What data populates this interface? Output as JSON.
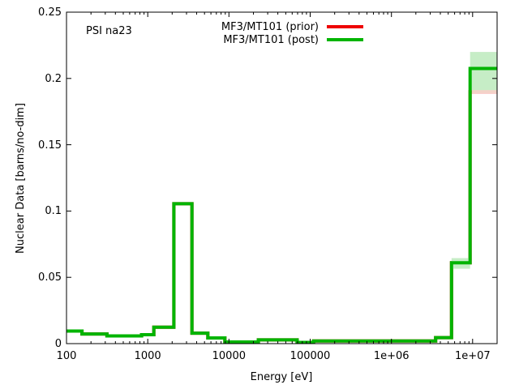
{
  "chart_data": {
    "type": "line",
    "subtype": "step-histogram",
    "annotation": "PSI na23",
    "xlabel": "Energy [eV]",
    "ylabel": "Nuclear Data [barns/no-dim]",
    "x_scale": "log10",
    "grid": false,
    "legend_position": "top-center-inside",
    "xlim": [
      100,
      20000000
    ],
    "ylim": [
      0,
      0.25
    ],
    "x_tick_values": [
      100,
      1000,
      10000,
      100000,
      1000000,
      10000000
    ],
    "x_tick_labels": [
      "100",
      "1000",
      "10000",
      "100000",
      "1e+06",
      "1e+07"
    ],
    "y_tick_values": [
      0,
      0.05,
      0.1,
      0.15,
      0.2,
      0.25
    ],
    "y_tick_labels": [
      "0",
      "0.05",
      "0.1",
      "0.15",
      "0.2",
      "0.25"
    ],
    "bin_edges_eV": [
      100,
      155,
      315,
      840,
      1190,
      2100,
      3500,
      5500,
      8900,
      23000,
      69000,
      110000,
      3500000,
      5500000,
      9300000,
      20000000
    ],
    "series": [
      {
        "name": "MF3/MT101 (prior)",
        "color": "#ee0000",
        "values": [
          0.0095,
          0.0073,
          0.0058,
          0.0067,
          0.0124,
          0.1055,
          0.0079,
          0.0043,
          0.0012,
          0.0028,
          0.0009,
          0.002,
          0.0045,
          0.061,
          0.19
        ]
      },
      {
        "name": "MF3/MT101 (post)",
        "color": "#00b400",
        "values": [
          0.0095,
          0.0073,
          0.0058,
          0.0067,
          0.0124,
          0.1055,
          0.0079,
          0.0043,
          0.0012,
          0.0028,
          0.0009,
          0.002,
          0.0045,
          0.061,
          0.2075
        ]
      }
    ],
    "uncertainty_bands": [
      {
        "x1": 5500000,
        "x2": 9300000,
        "y1": 0.0565,
        "y2": 0.0645,
        "color": "#c6edc6"
      },
      {
        "x1": 9300000,
        "x2": 20000000,
        "y1": 0.191,
        "y2": 0.22,
        "color": "#c6edc6"
      }
    ],
    "prior_visible_edge": {
      "x1": 9300000,
      "x2": 20000000,
      "y": 0.19,
      "color": "#f3d2c8"
    }
  }
}
